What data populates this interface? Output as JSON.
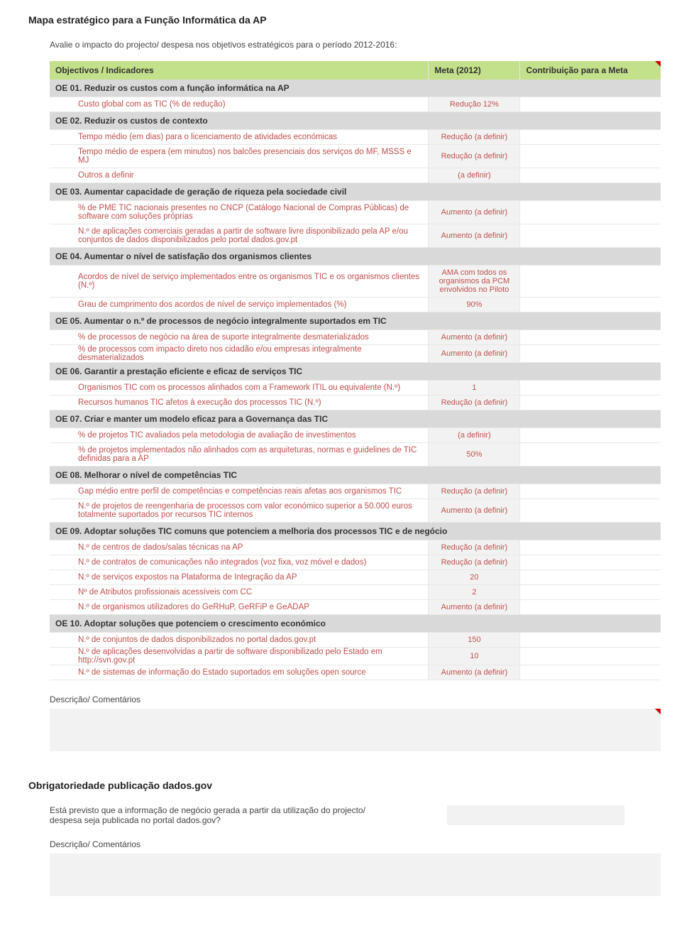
{
  "title": "Mapa estratégico para a Função Informática da AP",
  "subtitle": "Avalie o impacto do projecto/ despesa nos objetivos estratégicos para o período 2012-2016:",
  "headers": {
    "col1": "Objectivos / Indicadores",
    "col2": "Meta (2012)",
    "col3": "Contribuição para a Meta"
  },
  "sections": [
    {
      "label": "OE 01. Reduzir os custos com a função informática na AP",
      "rows": [
        {
          "ind": "Custo global com as TIC (% de redução)",
          "meta": "Redução 12%"
        }
      ]
    },
    {
      "label": "OE 02. Reduzir os custos de contexto",
      "rows": [
        {
          "ind": "Tempo médio (em dias) para o licenciamento de atividades económicas",
          "meta": "Redução (a definir)"
        },
        {
          "ind": "Tempo médio de espera (em minutos) nos balcões presenciais dos serviços do MF, MSSS e MJ",
          "meta": "Redução (a definir)"
        },
        {
          "ind": "Outros a definir",
          "meta": "(a definir)"
        }
      ]
    },
    {
      "label": "OE 03. Aumentar capacidade de geração de riqueza pela sociedade civil",
      "rows": [
        {
          "ind": "% de PME TIC nacionais presentes no CNCP (Catálogo Nacional de Compras Públicas) de software com soluções próprias",
          "meta": "Aumento (a definir)"
        },
        {
          "ind": "N.º de aplicações comerciais geradas a partir de software livre disponibilizado pela AP e/ou conjuntos de dados disponibilizados pelo portal dados.gov.pt",
          "meta": "Aumento (a definir)"
        }
      ]
    },
    {
      "label": "OE 04. Aumentar o nível de satisfação dos organismos clientes",
      "rows": [
        {
          "ind": "Acordos de nível de serviço implementados entre os organismos TIC e os organismos clientes (N.º)",
          "meta": "AMA com todos os organismos da PCM envolvidos no Piloto"
        },
        {
          "ind": "Grau de cumprimento dos acordos de nível de serviço implementados (%)",
          "meta": "90%"
        }
      ]
    },
    {
      "label": "OE 05. Aumentar o n.º de processos de negócio integralmente suportados em TIC",
      "rows": [
        {
          "ind": "% de processos de negócio na área de suporte integralmente desmaterializados",
          "meta": "Aumento (a definir)"
        },
        {
          "ind": "% de processos com impacto direto nos cidadão e/ou empresas integralmente desmaterializados",
          "meta": "Aumento (a definir)",
          "clipMulti": true
        }
      ]
    },
    {
      "label": "OE 06. Garantir a prestação eficiente e eficaz de serviços TIC",
      "rows": [
        {
          "ind": "Organismos TIC com os processos alinhados com a Framework ITIL ou equivalente (N.º)",
          "meta": "1"
        },
        {
          "ind": "Recursos humanos TIC afetos à execução dos processos TIC (N.º)",
          "meta": "Redução (a definir)"
        }
      ]
    },
    {
      "label": "OE 07. Criar e manter um modelo eficaz para a Governança das TIC",
      "rows": [
        {
          "ind": "% de projetos TIC avaliados pela metodologia de avaliação de investimentos",
          "meta": "(a definir)"
        },
        {
          "ind": "% de projetos implementados não alinhados com as arquiteturas, normas e guidelines de TIC definidas para a AP",
          "meta": "50%"
        }
      ]
    },
    {
      "label": "OE 08. Melhorar o nível de competências TIC",
      "rows": [
        {
          "ind": "Gap médio entre perfil de competências e competências reais afetas aos organismos TIC",
          "meta": "Redução (a definir)",
          "clipMulti": true
        },
        {
          "ind": "N.º de projetos de reengenharia de processos com valor económico superior a 50.000 euros totalmente suportados por recursos TIC internos",
          "meta": "Aumento (a definir)"
        }
      ]
    },
    {
      "label": "OE 09. Adoptar soluções TIC comuns que potenciem a melhoria dos processos TIC e de negócio",
      "rows": [
        {
          "ind": "N.º de centros de dados/salas técnicas na AP",
          "meta": "Redução (a definir)"
        },
        {
          "ind": "N.º de contratos de comunicações não integrados (voz fixa, voz móvel e dados)",
          "meta": "Redução (a definir)"
        },
        {
          "ind": "N.º de serviços expostos na Plataforma de Integração da AP",
          "meta": "20"
        },
        {
          "ind": "Nº de Atributos profissionais acessíveis com CC",
          "meta": "2"
        },
        {
          "ind": "N.º de organismos utilizadores do GeRHuP, GeRFiP e GeADAP",
          "meta": "Aumento (a definir)"
        }
      ]
    },
    {
      "label": "OE 10. Adoptar soluções que potenciem o crescimento económico",
      "rows": [
        {
          "ind": "N.º de conjuntos de dados disponibilizados no portal dados.gov.pt",
          "meta": "150"
        },
        {
          "ind": "N.º de aplicações desenvolvidas a partir de software disponibilizado pelo Estado em http://svn.gov.pt",
          "meta": "10",
          "clipMulti": true
        },
        {
          "ind": "N.º de sistemas de informação do Estado suportados em soluções open source",
          "meta": "Aumento (a definir)"
        }
      ]
    }
  ],
  "descLabel": "Descrição/ Comentários",
  "section2": {
    "title": "Obrigatoriedade publicação dados.gov",
    "question": "Está previsto que a informação de negócio gerada a partir da utilização do projecto/ despesa seja publicada no portal dados.gov?",
    "descLabel": "Descrição/ Comentários"
  },
  "colWidths": {
    "ind": "62%",
    "meta": "15%",
    "contrib": "23%"
  },
  "colors": {
    "headerBg": "#c3e08b",
    "sectionBg": "#d9d9d9",
    "metaBg": "#f2f2f2",
    "textRed": "#c0504d"
  }
}
